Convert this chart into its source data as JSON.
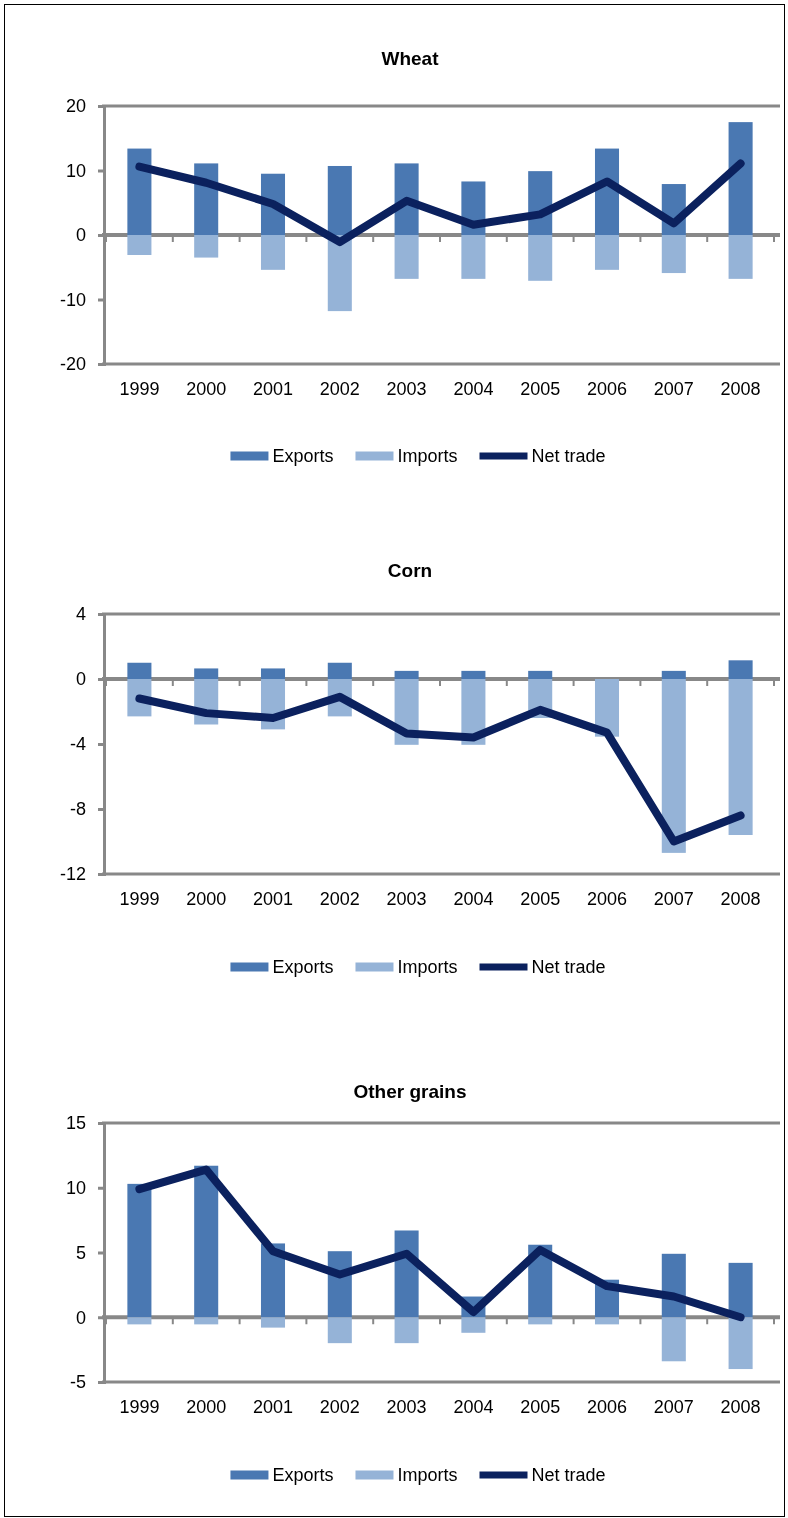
{
  "chart_data": [
    {
      "type": "bar",
      "title": "Wheat",
      "categories": [
        "1999",
        "2000",
        "2001",
        "2002",
        "2003",
        "2004",
        "2005",
        "2006",
        "2007",
        "2008"
      ],
      "stacked": true,
      "series": [
        {
          "name": "Exports",
          "color": "#4a78b2",
          "values": [
            13.4,
            11.1,
            9.5,
            10.7,
            11.1,
            8.3,
            9.9,
            13.4,
            7.9,
            17.5
          ]
        },
        {
          "name": "Imports",
          "color": "#95b3d7",
          "values": [
            -3.1,
            -3.5,
            -5.4,
            -11.8,
            -6.8,
            -6.8,
            -7.1,
            -5.4,
            -5.9,
            -6.8
          ]
        },
        {
          "name": "Net trade",
          "type": "line",
          "color": "#0b215e",
          "values": [
            10.6,
            8.1,
            4.8,
            -1.1,
            5.3,
            1.6,
            3.2,
            8.3,
            1.8,
            11.1
          ]
        }
      ],
      "ylim": [
        -20,
        20
      ],
      "yticks": [
        -20,
        -10,
        0,
        10,
        20
      ],
      "legend": "bottom"
    },
    {
      "type": "bar",
      "title": "Corn",
      "categories": [
        "1999",
        "2000",
        "2001",
        "2002",
        "2003",
        "2004",
        "2005",
        "2006",
        "2007",
        "2008"
      ],
      "stacked": true,
      "series": [
        {
          "name": "Exports",
          "color": "#4a78b2",
          "values": [
            1.0,
            0.65,
            0.65,
            1.0,
            0.5,
            0.5,
            0.5,
            0,
            0.5,
            1.15
          ]
        },
        {
          "name": "Imports",
          "color": "#95b3d7",
          "values": [
            -2.3,
            -2.8,
            -3.1,
            -2.3,
            -4.05,
            -4.05,
            -2.4,
            -3.55,
            -10.7,
            -9.6
          ]
        },
        {
          "name": "Net trade",
          "type": "line",
          "color": "#0b215e",
          "values": [
            -1.2,
            -2.1,
            -2.4,
            -1.1,
            -3.35,
            -3.6,
            -1.9,
            -3.3,
            -10.0,
            -8.4
          ]
        }
      ],
      "ylim": [
        -12,
        4
      ],
      "yticks": [
        -12,
        -8,
        -4,
        0,
        4
      ],
      "legend": "bottom"
    },
    {
      "type": "bar",
      "title": "Other grains",
      "categories": [
        "1999",
        "2000",
        "2001",
        "2002",
        "2003",
        "2004",
        "2005",
        "2006",
        "2007",
        "2008"
      ],
      "stacked": true,
      "series": [
        {
          "name": "Exports",
          "color": "#4a78b2",
          "values": [
            10.3,
            11.7,
            5.7,
            5.1,
            6.7,
            1.6,
            5.6,
            2.9,
            4.9,
            4.2
          ]
        },
        {
          "name": "Imports",
          "color": "#95b3d7",
          "values": [
            -0.55,
            -0.55,
            -0.8,
            -2.0,
            -2.0,
            -1.2,
            -0.55,
            -0.55,
            -3.4,
            -4.0
          ]
        },
        {
          "name": "Net trade",
          "type": "line",
          "color": "#0b215e",
          "values": [
            9.9,
            11.4,
            5.1,
            3.3,
            4.9,
            0.4,
            5.2,
            2.4,
            1.6,
            0.0
          ]
        }
      ],
      "ylim": [
        -5,
        15
      ],
      "yticks": [
        -5,
        0,
        5,
        10,
        15
      ],
      "legend": "bottom"
    }
  ]
}
